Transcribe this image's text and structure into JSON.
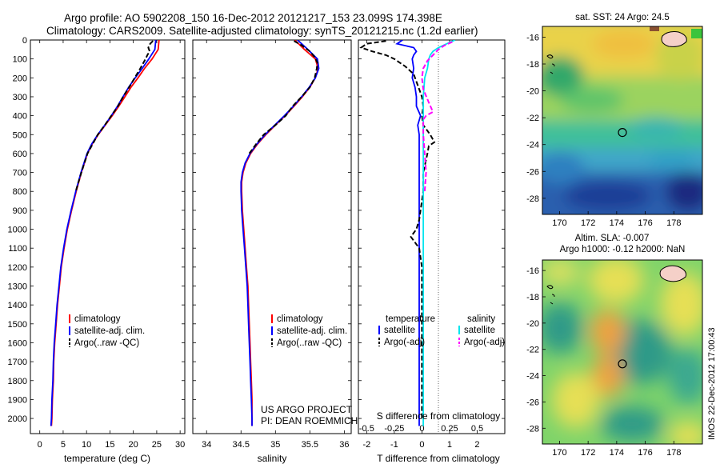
{
  "figure": {
    "title_line1": "Argo profile: AO 5902208_150 16-Dec-2012 20121217_153 23.099S 174.398E",
    "title_line2": "Climatology: CARS2009. Satellite-adjusted climatology: synTS_20121215.nc (1.2d earlier)",
    "credit_line1": "US ARGO PROJECT",
    "credit_line2": "PI: DEAN ROEMMICH",
    "stamp": "IMOS 22-Dec-2012 17:00:43"
  },
  "colors": {
    "climatology": "#ff0000",
    "satellite": "#0000ff",
    "argo": "#000000",
    "sal_satellite": "#00e5ee",
    "sal_argo": "#ff00ff"
  },
  "chart_data": [
    {
      "type": "line",
      "id": "temperature",
      "xlabel": "temperature (deg C)",
      "xlim": [
        -2,
        31
      ],
      "ylim": [
        2080,
        0
      ],
      "xticks": [
        0,
        5,
        10,
        15,
        20,
        25,
        30
      ],
      "yticks": [
        0,
        100,
        200,
        300,
        400,
        500,
        600,
        700,
        800,
        900,
        1000,
        1100,
        1200,
        1300,
        1400,
        1500,
        1600,
        1700,
        1800,
        1900,
        2000
      ],
      "legend": [
        "climatology",
        "satellite-adj. clim.",
        "Argo(..raw -QC)"
      ],
      "series": [
        {
          "name": "climatology",
          "color": "#ff0000",
          "y": [
            0,
            50,
            100,
            150,
            200,
            250,
            300,
            350,
            400,
            450,
            500,
            550,
            600,
            700,
            800,
            900,
            1000,
            1100,
            1200,
            1300,
            1400,
            1500,
            1600,
            1700,
            1800,
            1900,
            2000,
            2040
          ],
          "x": [
            25.5,
            25.3,
            24.0,
            22.4,
            21.0,
            19.5,
            18.2,
            16.9,
            15.5,
            14.0,
            12.5,
            11.2,
            10.2,
            8.9,
            7.8,
            6.8,
            5.9,
            5.2,
            4.6,
            4.2,
            3.8,
            3.5,
            3.2,
            3.0,
            2.9,
            2.7,
            2.6,
            2.5
          ]
        },
        {
          "name": "satellite-adj. clim.",
          "color": "#0000ff",
          "y": [
            0,
            50,
            100,
            150,
            200,
            250,
            300,
            350,
            400,
            450,
            500,
            550,
            600,
            700,
            800,
            900,
            1000,
            1100,
            1200,
            1300,
            1400,
            1500,
            1600,
            1700,
            1800,
            1900,
            2000,
            2040
          ],
          "x": [
            24.8,
            24.6,
            23.3,
            21.9,
            20.4,
            19.0,
            17.8,
            16.6,
            15.3,
            13.9,
            12.4,
            11.1,
            10.1,
            8.8,
            7.7,
            6.7,
            5.8,
            5.1,
            4.5,
            4.1,
            3.7,
            3.4,
            3.1,
            2.9,
            2.8,
            2.6,
            2.5,
            2.4
          ]
        },
        {
          "name": "Argo(..raw -QC)",
          "color": "#000000",
          "dash": true,
          "y": [
            5,
            20,
            40,
            60,
            80,
            100,
            150,
            200,
            250,
            300,
            350,
            400,
            450,
            500,
            600,
            700,
            800
          ],
          "x": [
            24.2,
            23.6,
            23.2,
            23.5,
            23.0,
            22.6,
            21.5,
            20.3,
            19.1,
            17.8,
            16.7,
            15.3,
            13.9,
            12.4,
            10.2,
            8.9,
            7.7
          ]
        }
      ]
    },
    {
      "type": "line",
      "id": "salinity",
      "xlabel": "salinity",
      "xlim": [
        33.8,
        36.1
      ],
      "ylim": [
        2080,
        0
      ],
      "xticks": [
        34,
        34.5,
        35,
        35.5,
        36
      ],
      "xticklabels": [
        "34",
        "34.5",
        "35",
        "35.5",
        "36"
      ],
      "legend": [
        "climatology",
        "satellite-adj. clim.",
        "Argo(..raw -QC)"
      ],
      "series": [
        {
          "name": "climatology",
          "color": "#ff0000",
          "y": [
            0,
            50,
            100,
            150,
            200,
            250,
            300,
            350,
            400,
            450,
            500,
            550,
            600,
            650,
            700,
            750,
            800,
            900,
            1000,
            1100,
            1200,
            1300,
            1400,
            1500,
            1600,
            1700,
            1800,
            1900,
            2000,
            2040
          ],
          "x": [
            35.28,
            35.42,
            35.58,
            35.62,
            35.58,
            35.5,
            35.39,
            35.27,
            35.14,
            35.0,
            34.86,
            34.74,
            34.64,
            34.57,
            34.53,
            34.51,
            34.51,
            34.52,
            34.54,
            34.56,
            34.58,
            34.6,
            34.61,
            34.62,
            34.63,
            34.64,
            34.65,
            34.66,
            34.66,
            34.66
          ]
        },
        {
          "name": "satellite-adj. clim.",
          "color": "#0000ff",
          "y": [
            0,
            50,
            100,
            150,
            200,
            250,
            300,
            350,
            400,
            450,
            500,
            550,
            600,
            650,
            700,
            750,
            800,
            900,
            1000,
            1100,
            1200,
            1300,
            1400,
            1500,
            1600,
            1700,
            1800,
            1900,
            2000,
            2040
          ],
          "x": [
            35.32,
            35.47,
            35.61,
            35.63,
            35.58,
            35.49,
            35.38,
            35.26,
            35.13,
            34.99,
            34.85,
            34.73,
            34.63,
            34.56,
            34.52,
            34.5,
            34.5,
            34.51,
            34.53,
            34.55,
            34.57,
            34.59,
            34.6,
            34.61,
            34.62,
            34.63,
            34.64,
            34.65,
            34.66,
            34.66
          ]
        },
        {
          "name": "Argo(..raw -QC)",
          "color": "#000000",
          "dash": true,
          "y": [
            5,
            30,
            60,
            90,
            120,
            150,
            200,
            250,
            300,
            350,
            400,
            450,
            500,
            550,
            600
          ],
          "x": [
            35.27,
            35.39,
            35.5,
            35.57,
            35.61,
            35.6,
            35.57,
            35.5,
            35.38,
            35.25,
            35.15,
            35.0,
            34.83,
            34.72,
            34.62
          ]
        }
      ]
    },
    {
      "type": "line",
      "id": "difference",
      "xlabel_top": "S difference from climatology",
      "xlabel": "T difference from climatology",
      "xlim": [
        -2.3,
        3.0
      ],
      "ylim": [
        2080,
        0
      ],
      "xticks": [
        -2,
        -1,
        0,
        1,
        2
      ],
      "xticklabels": [
        "-2",
        "-1",
        "0",
        "1",
        "2"
      ],
      "sticks": [
        -2,
        -1,
        0,
        1,
        2
      ],
      "sticklabels": [
        "-0.5",
        "-0.25",
        "0",
        "0.25",
        "0.5"
      ],
      "legend_titles": [
        "temperature",
        "salinity"
      ],
      "legend": [
        "satellite",
        "Argo(-adj)",
        "satellite",
        "Argo(-adj)"
      ],
      "series": [
        {
          "name": "satellite",
          "color": "#0000ff",
          "y": [
            0,
            20,
            40,
            60,
            80,
            100,
            150,
            200,
            250,
            300,
            350,
            400,
            450,
            500,
            600,
            800,
            1000,
            1200,
            1500,
            1800,
            2040
          ],
          "x": [
            -0.7,
            -0.9,
            -0.3,
            -0.2,
            -0.3,
            -0.35,
            -0.3,
            -0.35,
            -0.25,
            -0.2,
            -0.2,
            -0.05,
            -0.15,
            -0.1,
            -0.1,
            -0.1,
            -0.1,
            -0.1,
            -0.1,
            -0.1,
            -0.1
          ]
        },
        {
          "name": "Argo(-adj)",
          "color": "#000000",
          "dash": true,
          "y": [
            5,
            20,
            40,
            60,
            80,
            100,
            140,
            180,
            220,
            260,
            300,
            350,
            400,
            450,
            500,
            540,
            560,
            600,
            700,
            800,
            900,
            950,
            1000,
            1040,
            1100,
            1200,
            1400,
            1600,
            1800,
            2000
          ],
          "x": [
            -1.3,
            -2.0,
            -2.2,
            -1.8,
            -1.3,
            -1.0,
            -0.6,
            -0.3,
            -0.2,
            -0.1,
            0.0,
            0.05,
            0.0,
            0.05,
            0.3,
            0.45,
            0.25,
            0.2,
            0.05,
            0.05,
            -0.05,
            -0.1,
            -0.2,
            -0.4,
            -0.1,
            0.0,
            0.0,
            0.0,
            0.0,
            0.0
          ]
        },
        {
          "name": "satellite",
          "color": "#00e5ee",
          "y": [
            0,
            20,
            40,
            60,
            80,
            100,
            150,
            200,
            300,
            400,
            500,
            600,
            800,
            1000,
            1200,
            1500,
            1800,
            2040
          ],
          "x": [
            1.2,
            0.9,
            0.6,
            0.4,
            0.3,
            0.25,
            0.2,
            0.1,
            0.05,
            0.05,
            0.05,
            0.05,
            0.05,
            0.05,
            0.05,
            0.05,
            0.05,
            0.05
          ]
        },
        {
          "name": "Argo(-adj)",
          "color": "#ff00ff",
          "dash": true,
          "y": [
            10,
            30,
            50,
            80,
            110,
            150,
            200,
            260,
            330,
            380,
            400,
            420,
            500,
            600,
            700,
            800
          ],
          "x": [
            1.1,
            0.8,
            0.6,
            0.4,
            0.2,
            0.05,
            0.0,
            0.05,
            0.25,
            0.4,
            0.15,
            0.05,
            0.05,
            0.1,
            0.15,
            0.1
          ]
        }
      ]
    },
    {
      "type": "heatmap",
      "id": "sst_map",
      "title": "sat. SST: 24 Argo: 24.5",
      "xlim": [
        168.8,
        180.0
      ],
      "ylim": [
        -29.2,
        -15.2
      ],
      "xticks": [
        170,
        172,
        174,
        176,
        178
      ],
      "yticks": [
        -16,
        -18,
        -20,
        -22,
        -24,
        -26,
        -28
      ],
      "marker": [
        174.398,
        -23.099
      ]
    },
    {
      "type": "heatmap",
      "id": "sla_map",
      "title_line1": "Altim. SLA: -0.007",
      "title_line2": "Argo h1000: -0.12 h2000: NaN",
      "xlim": [
        168.8,
        180.0
      ],
      "ylim": [
        -29.2,
        -15.2
      ],
      "xticks": [
        170,
        172,
        174,
        176,
        178
      ],
      "yticks": [
        -16,
        -18,
        -20,
        -22,
        -24,
        -26,
        -28
      ],
      "marker": [
        174.398,
        -23.099
      ]
    }
  ]
}
